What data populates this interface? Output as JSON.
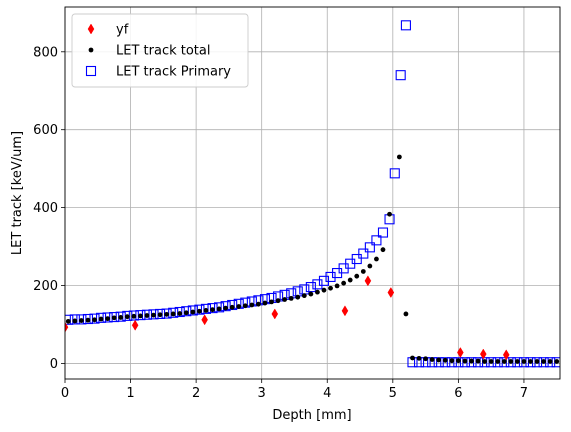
{
  "chart_data": {
    "type": "scatter",
    "title": "",
    "xlabel": "Depth [mm]",
    "ylabel": "LET track [keV/um]",
    "xlim": [
      0,
      7.55
    ],
    "ylim": [
      -40,
      915
    ],
    "xticks": [
      0,
      1,
      2,
      3,
      4,
      5,
      6,
      7
    ],
    "yticks": [
      0,
      200,
      400,
      600,
      800
    ],
    "grid": true,
    "legend_position": "top-left",
    "series": [
      {
        "name": "yf",
        "marker": "thin_diamond",
        "color": "#ff0000",
        "points": [
          [
            0.0,
            93
          ],
          [
            1.07,
            98
          ],
          [
            2.13,
            112
          ],
          [
            3.2,
            127
          ],
          [
            4.27,
            135
          ],
          [
            4.62,
            212
          ],
          [
            4.97,
            182
          ],
          [
            6.03,
            28
          ],
          [
            6.38,
            24
          ],
          [
            6.73,
            22
          ]
        ]
      },
      {
        "name": "LET track total",
        "marker": "circle",
        "color": "#000000",
        "points": [
          [
            0.05,
            108
          ],
          [
            0.15,
            109
          ],
          [
            0.25,
            110
          ],
          [
            0.35,
            111
          ],
          [
            0.45,
            112
          ],
          [
            0.55,
            114
          ],
          [
            0.65,
            115
          ],
          [
            0.75,
            117
          ],
          [
            0.85,
            118
          ],
          [
            0.95,
            120
          ],
          [
            1.05,
            121
          ],
          [
            1.15,
            122
          ],
          [
            1.25,
            123
          ],
          [
            1.35,
            124
          ],
          [
            1.45,
            125
          ],
          [
            1.55,
            126
          ],
          [
            1.65,
            127
          ],
          [
            1.75,
            128
          ],
          [
            1.85,
            130
          ],
          [
            1.95,
            132
          ],
          [
            2.05,
            134
          ],
          [
            2.15,
            136
          ],
          [
            2.25,
            138
          ],
          [
            2.35,
            140
          ],
          [
            2.45,
            142
          ],
          [
            2.55,
            144
          ],
          [
            2.65,
            146
          ],
          [
            2.75,
            148
          ],
          [
            2.85,
            150
          ],
          [
            2.95,
            152
          ],
          [
            3.05,
            155
          ],
          [
            3.15,
            158
          ],
          [
            3.25,
            161
          ],
          [
            3.35,
            164
          ],
          [
            3.45,
            167
          ],
          [
            3.55,
            170
          ],
          [
            3.65,
            174
          ],
          [
            3.75,
            178
          ],
          [
            3.85,
            183
          ],
          [
            3.95,
            188
          ],
          [
            4.05,
            193
          ],
          [
            4.15,
            199
          ],
          [
            4.25,
            206
          ],
          [
            4.35,
            214
          ],
          [
            4.45,
            224
          ],
          [
            4.55,
            236
          ],
          [
            4.65,
            250
          ],
          [
            4.75,
            268
          ],
          [
            4.85,
            292
          ],
          [
            4.95,
            383
          ],
          [
            5.1,
            530
          ],
          [
            5.2,
            127
          ],
          [
            5.3,
            14
          ],
          [
            5.4,
            13
          ],
          [
            5.5,
            12
          ],
          [
            5.6,
            10
          ],
          [
            5.7,
            9
          ],
          [
            5.8,
            8
          ],
          [
            5.9,
            7
          ],
          [
            6.0,
            7
          ],
          [
            6.1,
            6
          ],
          [
            6.2,
            6
          ],
          [
            6.3,
            6
          ],
          [
            6.4,
            5
          ],
          [
            6.5,
            5
          ],
          [
            6.6,
            5
          ],
          [
            6.7,
            5
          ],
          [
            6.8,
            5
          ],
          [
            6.9,
            5
          ],
          [
            7.0,
            5
          ],
          [
            7.1,
            5
          ],
          [
            7.2,
            5
          ],
          [
            7.3,
            5
          ],
          [
            7.4,
            5
          ],
          [
            7.5,
            5
          ]
        ]
      },
      {
        "name": "LET track Primary",
        "marker": "square",
        "color": "#0000ff",
        "points": [
          [
            0.05,
            112
          ],
          [
            0.15,
            113
          ],
          [
            0.25,
            113
          ],
          [
            0.35,
            114
          ],
          [
            0.45,
            115
          ],
          [
            0.55,
            117
          ],
          [
            0.65,
            118
          ],
          [
            0.75,
            119
          ],
          [
            0.85,
            120
          ],
          [
            0.95,
            122
          ],
          [
            1.05,
            123
          ],
          [
            1.15,
            124
          ],
          [
            1.25,
            125
          ],
          [
            1.35,
            126
          ],
          [
            1.45,
            127
          ],
          [
            1.55,
            128
          ],
          [
            1.65,
            130
          ],
          [
            1.75,
            132
          ],
          [
            1.85,
            134
          ],
          [
            1.95,
            136
          ],
          [
            2.05,
            138
          ],
          [
            2.15,
            140
          ],
          [
            2.25,
            142
          ],
          [
            2.35,
            144
          ],
          [
            2.45,
            147
          ],
          [
            2.55,
            150
          ],
          [
            2.65,
            153
          ],
          [
            2.75,
            156
          ],
          [
            2.85,
            159
          ],
          [
            2.95,
            162
          ],
          [
            3.05,
            165
          ],
          [
            3.15,
            168
          ],
          [
            3.25,
            172
          ],
          [
            3.35,
            176
          ],
          [
            3.45,
            180
          ],
          [
            3.55,
            185
          ],
          [
            3.65,
            190
          ],
          [
            3.75,
            196
          ],
          [
            3.85,
            203
          ],
          [
            3.95,
            212
          ],
          [
            4.05,
            222
          ],
          [
            4.15,
            232
          ],
          [
            4.25,
            244
          ],
          [
            4.35,
            256
          ],
          [
            4.45,
            268
          ],
          [
            4.55,
            282
          ],
          [
            4.65,
            298
          ],
          [
            4.75,
            316
          ],
          [
            4.85,
            336
          ],
          [
            4.95,
            370
          ],
          [
            5.03,
            488
          ],
          [
            5.12,
            740
          ],
          [
            5.2,
            868
          ],
          [
            5.3,
            3
          ],
          [
            5.4,
            3
          ],
          [
            5.5,
            3
          ],
          [
            5.6,
            3
          ],
          [
            5.7,
            3
          ],
          [
            5.8,
            3
          ],
          [
            5.9,
            3
          ],
          [
            6.0,
            3
          ],
          [
            6.1,
            3
          ],
          [
            6.2,
            3
          ],
          [
            6.3,
            3
          ],
          [
            6.4,
            3
          ],
          [
            6.5,
            3
          ],
          [
            6.6,
            3
          ],
          [
            6.7,
            3
          ],
          [
            6.8,
            3
          ],
          [
            6.9,
            3
          ],
          [
            7.0,
            3
          ],
          [
            7.1,
            3
          ],
          [
            7.2,
            3
          ],
          [
            7.3,
            3
          ],
          [
            7.4,
            3
          ],
          [
            7.5,
            3
          ]
        ]
      }
    ]
  }
}
